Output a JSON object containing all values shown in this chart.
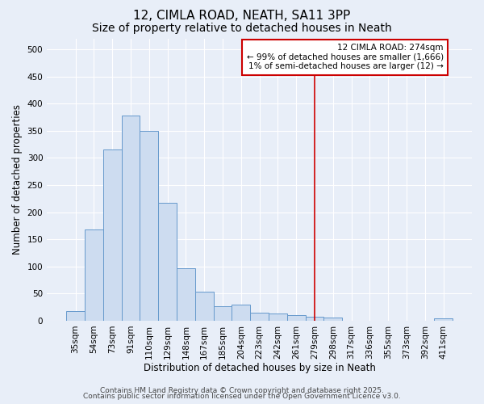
{
  "title1": "12, CIMLA ROAD, NEATH, SA11 3PP",
  "title2": "Size of property relative to detached houses in Neath",
  "xlabel": "Distribution of detached houses by size in Neath",
  "ylabel": "Number of detached properties",
  "categories": [
    "35sqm",
    "54sqm",
    "73sqm",
    "91sqm",
    "110sqm",
    "129sqm",
    "148sqm",
    "167sqm",
    "185sqm",
    "204sqm",
    "223sqm",
    "242sqm",
    "261sqm",
    "279sqm",
    "298sqm",
    "317sqm",
    "336sqm",
    "355sqm",
    "373sqm",
    "392sqm",
    "411sqm"
  ],
  "values": [
    18,
    168,
    315,
    378,
    350,
    217,
    97,
    54,
    26,
    30,
    15,
    13,
    10,
    8,
    6,
    0,
    0,
    0,
    0,
    0,
    5
  ],
  "bar_color": "#cddcf0",
  "bar_edge_color": "#6699cc",
  "background_color": "#e8eef8",
  "grid_color": "#ffffff",
  "vline_x_index": 13,
  "vline_color": "#cc0000",
  "annotation_line1": "12 CIMLA ROAD: 274sqm",
  "annotation_line2": "← 99% of detached houses are smaller (1,666)",
  "annotation_line3": "1% of semi-detached houses are larger (12) →",
  "annotation_box_facecolor": "#ffffff",
  "annotation_box_edgecolor": "#cc0000",
  "footer1": "Contains HM Land Registry data © Crown copyright and database right 2025.",
  "footer2": "Contains public sector information licensed under the Open Government Licence v3.0.",
  "ylim": [
    0,
    520
  ],
  "yticks": [
    0,
    50,
    100,
    150,
    200,
    250,
    300,
    350,
    400,
    450,
    500
  ],
  "title_fontsize": 11,
  "subtitle_fontsize": 10,
  "axis_label_fontsize": 8.5,
  "tick_fontsize": 7.5,
  "annotation_fontsize": 7.5,
  "footer_fontsize": 6.5
}
